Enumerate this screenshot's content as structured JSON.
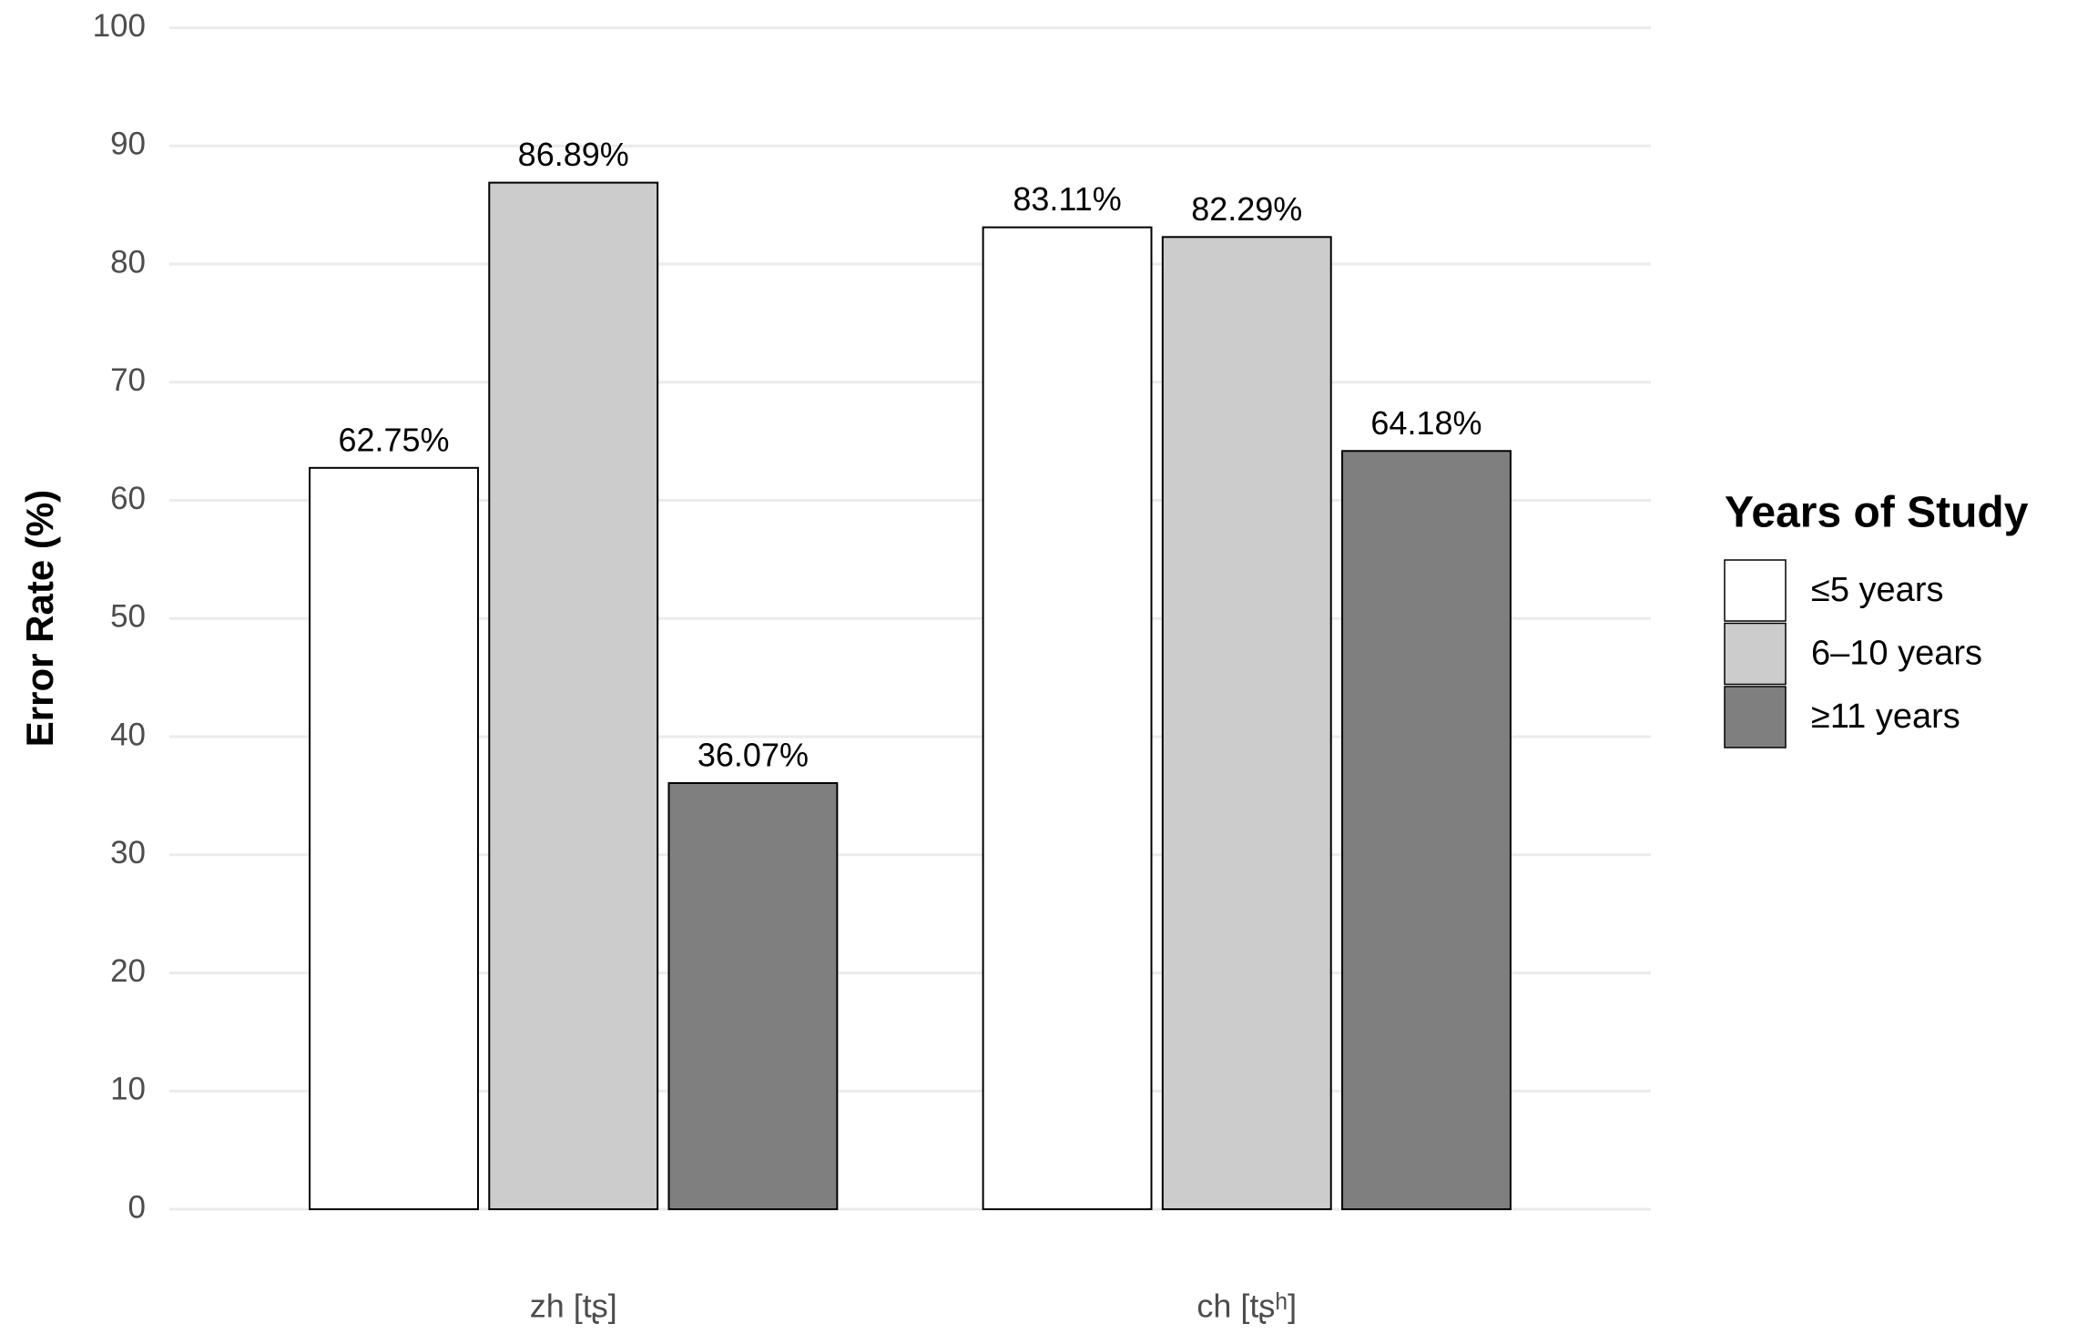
{
  "chart_data": {
    "type": "bar",
    "y_label": "Error Rate (%)",
    "legend_title": "Years of Study",
    "categories": [
      "zh [tʂ]",
      "ch [tʂʰ]"
    ],
    "series": [
      {
        "name": "≤5 years",
        "color": "#ffffff",
        "values": [
          62.75,
          83.11
        ],
        "value_labels": [
          "62.75%",
          "83.11%"
        ]
      },
      {
        "name": "6–10 years",
        "color": "#cccccc",
        "values": [
          86.89,
          82.29
        ],
        "value_labels": [
          "86.89%",
          "82.29%"
        ]
      },
      {
        "name": "≥11 years",
        "color": "#7f7f7f",
        "values": [
          36.07,
          64.18
        ],
        "value_labels": [
          "36.07%",
          "64.18%"
        ]
      }
    ],
    "ylim": [
      0,
      100
    ],
    "yticks": [
      0,
      10,
      20,
      30,
      40,
      50,
      60,
      70,
      80,
      90,
      100
    ],
    "grid": true,
    "legend": "right"
  }
}
